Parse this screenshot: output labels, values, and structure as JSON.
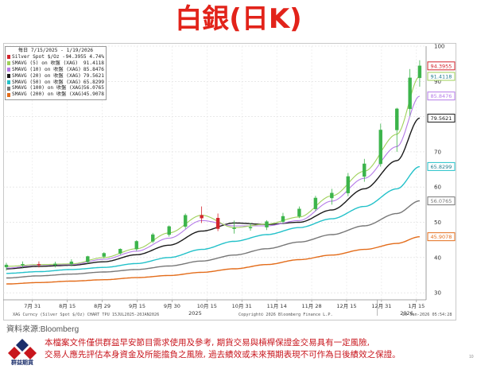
{
  "title": "白銀(日K)",
  "source": "資料來源:Bloomberg",
  "disclaimer": {
    "line1": "本檔案文件僅供群益早安節目需求使用及參考, 期貨交易與槓桿保證金交易具有一定風險,",
    "line2": "交易人應先評估本身資金及所能擔負之風險, 過去績效或未來預期表現不可作為日後績效之保證。"
  },
  "logo_text": "群益期貨",
  "page_number": "10",
  "footer": {
    "left": "XAG Curncy (Silver Spot $/Oz) CHART TPU 15JUL2025-20JAN2026",
    "middle": "Copyright© 2026 Bloomberg Finance L.P.",
    "right": "20-Jan-2026 05:54:28"
  },
  "colors": {
    "title": "#e2231a",
    "up_candle": "#3cb44b",
    "down_candle": "#d3242c",
    "smavg5": "#9fd15a",
    "smavg10": "#b57be8",
    "smavg20": "#1a1a1a",
    "smavg50": "#22c1c9",
    "smavg100": "#777777",
    "smavg200": "#e36c1a"
  },
  "chart_data": {
    "type": "candlestick",
    "legend_header": "每日 7/15/2025 - 1/19/2026",
    "legend_placement": "top-left",
    "y_axis_side": "right",
    "ylim": [
      28,
      100
    ],
    "y_ticks": [
      "100",
      "90",
      "80",
      "70",
      "60",
      "50",
      "40",
      "30"
    ],
    "x_ticks": [
      "7月 31",
      "8月 15",
      "8月 29",
      "9月 15",
      "9月 30",
      "10月 15",
      "10月 31",
      "11月 14",
      "11月 28",
      "12月 15",
      "12月 31",
      "1月 15"
    ],
    "x_years": [
      "2025",
      "2026"
    ],
    "last_values": [
      {
        "name": "Silver Spot $/Oz - 最新價",
        "value": "94.3955",
        "pct": "4.74%",
        "color": "#d3242c"
      },
      {
        "name": "SMAVG (5)  on 收盤 (XAG)",
        "value": "91.4118",
        "color": "#9fd15a"
      },
      {
        "name": "SMAVG (10)  on 收盤 (XAG)",
        "value": "85.8476",
        "color": "#b57be8"
      },
      {
        "name": "SMAVG (20)  on 收盤 (XAG)",
        "value": "79.5621",
        "color": "#1a1a1a"
      },
      {
        "name": "SMAVG (50)  on 收盤 (XAG)",
        "value": "65.8299",
        "color": "#22c1c9"
      },
      {
        "name": "SMAVG (100)  on 收盤 (XAG)",
        "value": "56.0765",
        "color": "#777777"
      },
      {
        "name": "SMAVG (200)  on 收盤 (XAG)",
        "value": "45.9078",
        "color": "#e36c1a"
      }
    ],
    "series": [
      {
        "name": "SMAVG (5)",
        "color": "#9fd15a",
        "x": [
          0,
          10,
          20,
          30,
          40,
          50,
          60,
          70,
          80,
          90,
          100,
          110,
          120,
          127
        ],
        "values": [
          37.5,
          38.0,
          38.2,
          40.0,
          42.5,
          47.0,
          52.0,
          48.5,
          49.5,
          51.5,
          57.5,
          64.5,
          75.0,
          91.4
        ]
      },
      {
        "name": "SMAVG (10)",
        "color": "#b57be8",
        "x": [
          0,
          10,
          20,
          30,
          40,
          50,
          60,
          70,
          80,
          90,
          100,
          110,
          120,
          127
        ],
        "values": [
          37.0,
          37.9,
          38.0,
          39.5,
          41.8,
          45.5,
          50.5,
          49.0,
          49.0,
          50.5,
          56.0,
          62.5,
          71.5,
          85.8
        ]
      },
      {
        "name": "SMAVG (20)",
        "color": "#1a1a1a",
        "x": [
          0,
          10,
          20,
          30,
          40,
          50,
          60,
          70,
          80,
          90,
          100,
          110,
          120,
          127
        ],
        "values": [
          36.8,
          37.5,
          37.8,
          38.8,
          40.8,
          43.5,
          47.5,
          49.8,
          49.4,
          50.0,
          53.5,
          59.5,
          67.5,
          79.6
        ]
      },
      {
        "name": "SMAVG (50)",
        "color": "#22c1c9",
        "x": [
          0,
          10,
          20,
          30,
          40,
          50,
          60,
          70,
          80,
          90,
          100,
          110,
          120,
          127
        ],
        "values": [
          35.5,
          36.0,
          36.6,
          37.2,
          38.3,
          40.0,
          42.3,
          44.6,
          46.5,
          48.5,
          51.0,
          54.5,
          59.5,
          65.8
        ]
      },
      {
        "name": "SMAVG (100)",
        "color": "#777777",
        "x": [
          0,
          10,
          20,
          30,
          40,
          50,
          60,
          70,
          80,
          90,
          100,
          110,
          120,
          127
        ],
        "values": [
          34.2,
          34.8,
          35.3,
          35.9,
          36.6,
          37.6,
          39.0,
          40.7,
          42.5,
          44.4,
          46.5,
          49.0,
          52.5,
          56.1
        ]
      },
      {
        "name": "SMAVG (200)",
        "color": "#e36c1a",
        "x": [
          0,
          10,
          20,
          30,
          40,
          50,
          60,
          70,
          80,
          90,
          100,
          110,
          120,
          127
        ],
        "values": [
          32.5,
          32.9,
          33.3,
          33.7,
          34.3,
          34.9,
          35.8,
          36.8,
          38.0,
          39.4,
          40.7,
          42.3,
          44.0,
          45.9
        ]
      }
    ],
    "candles": {
      "x": [
        0,
        5,
        10,
        15,
        20,
        25,
        30,
        35,
        40,
        45,
        50,
        55,
        60,
        65,
        70,
        75,
        80,
        85,
        90,
        95,
        100,
        105,
        110,
        115,
        120,
        124,
        127
      ],
      "open": [
        37.3,
        37.9,
        38.1,
        37.9,
        38.2,
        38.8,
        40.3,
        41.2,
        42.4,
        44.6,
        46.5,
        48.8,
        52.0,
        51.2,
        48.2,
        48.4,
        48.6,
        50.2,
        51.7,
        53.8,
        56.9,
        58.3,
        63.0,
        66.6,
        76.2,
        82.2,
        91.0
      ],
      "high": [
        38.5,
        38.9,
        38.9,
        38.8,
        39.5,
        40.5,
        41.5,
        42.6,
        44.9,
        47.0,
        49.1,
        52.5,
        54.5,
        52.5,
        50.5,
        49.8,
        50.6,
        52.7,
        54.5,
        57.5,
        59.5,
        64.0,
        68.0,
        78.0,
        82.5,
        93.5,
        96.0
      ],
      "low": [
        36.3,
        37.1,
        37.2,
        37.2,
        37.5,
        38.3,
        39.8,
        40.8,
        41.9,
        44.1,
        45.9,
        48.2,
        49.8,
        47.5,
        46.8,
        47.6,
        47.8,
        49.7,
        51.2,
        53.2,
        55.0,
        57.4,
        61.5,
        65.8,
        70.0,
        80.2,
        88.5
      ],
      "close": [
        37.9,
        38.1,
        37.9,
        38.2,
        38.8,
        40.3,
        41.2,
        42.4,
        44.6,
        46.5,
        48.8,
        52.0,
        51.2,
        48.2,
        48.4,
        48.6,
        50.2,
        51.7,
        53.8,
        56.9,
        58.3,
        63.0,
        66.6,
        76.2,
        82.2,
        91.0,
        94.4
      ]
    }
  }
}
